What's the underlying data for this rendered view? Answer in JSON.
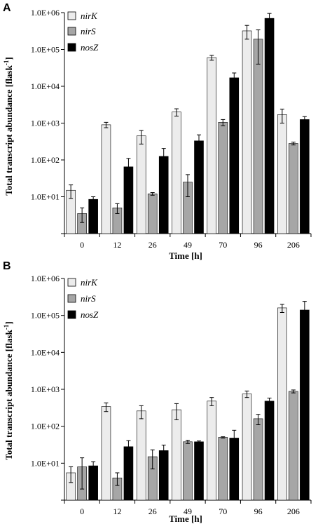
{
  "figure": {
    "panels": [
      "A",
      "B"
    ]
  },
  "colors": {
    "nirK": "#ececec",
    "nirS": "#a6a6a6",
    "nosZ": "#000000"
  },
  "chart_data": [
    {
      "panel": "A",
      "type": "bar",
      "xlabel": "Time [h]",
      "ylabel": "Total transcript abundance [flask",
      "ylabel_sup": "-1",
      "ylabel_end": "]",
      "yscale": "log",
      "ylim": [
        1,
        1000000
      ],
      "yticks": [
        "1.0E+06",
        "1.0E+05",
        "1.0E+04",
        "1.0E+03",
        "1.0E+02",
        "1.0E+01"
      ],
      "legend": "top-left",
      "categories": [
        "0",
        "12",
        "26",
        "49",
        "70",
        "96",
        "206"
      ],
      "series": [
        {
          "name": "nirK",
          "values": [
            15,
            900,
            450,
            2000,
            60000,
            320000,
            1700
          ],
          "err": [
            6,
            150,
            180,
            450,
            9000,
            130000,
            700
          ]
        },
        {
          "name": "nirS",
          "values": [
            3.5,
            5,
            12,
            25,
            1050,
            190000,
            280
          ],
          "err": [
            1.5,
            1.5,
            1,
            15,
            200,
            150000,
            25
          ]
        },
        {
          "name": "nosZ",
          "values": [
            8.5,
            65,
            125,
            330,
            17000,
            700000,
            1250
          ],
          "err": [
            1.5,
            45,
            80,
            150,
            6000,
            250000,
            250
          ]
        }
      ]
    },
    {
      "panel": "B",
      "type": "bar",
      "xlabel": "Time [h]",
      "ylabel": "Total transcript abundance [flask",
      "ylabel_sup": "-1",
      "ylabel_end": "]",
      "yscale": "log",
      "ylim": [
        1,
        1000000
      ],
      "yticks": [
        "1.0E+06",
        "1.0E+05",
        "1.0E+04",
        "1.0E+03",
        "1.0E+02",
        "1.0E+01"
      ],
      "legend": "top-left",
      "categories": [
        "0",
        "12",
        "26",
        "49",
        "70",
        "96",
        "206"
      ],
      "series": [
        {
          "name": "nirK",
          "values": [
            5.5,
            340,
            260,
            280,
            480,
            750,
            160000
          ],
          "err": [
            2.5,
            90,
            100,
            130,
            120,
            150,
            40000
          ]
        },
        {
          "name": "nirS",
          "values": [
            8,
            4,
            15,
            38,
            50,
            160,
            880
          ],
          "err": [
            6,
            1.5,
            8,
            4,
            2,
            50,
            80
          ]
        },
        {
          "name": "nosZ",
          "values": [
            8.5,
            28,
            22,
            38,
            48,
            480,
            140000
          ],
          "err": [
            2.5,
            13,
            9,
            2,
            30,
            100,
            100000
          ]
        }
      ]
    }
  ]
}
